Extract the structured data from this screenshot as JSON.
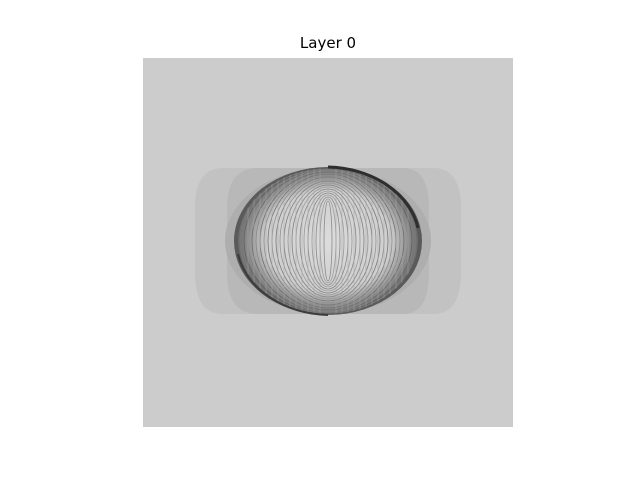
{
  "figure": {
    "title": "Layer 0"
  },
  "image": {
    "description_colors": {
      "background": "#cccccc",
      "outer_band": "#bfbfbf",
      "inner_band": "#b3b3b3",
      "ring_dark": "#3a3a3a",
      "ring_light": "#e6e6e6"
    }
  }
}
